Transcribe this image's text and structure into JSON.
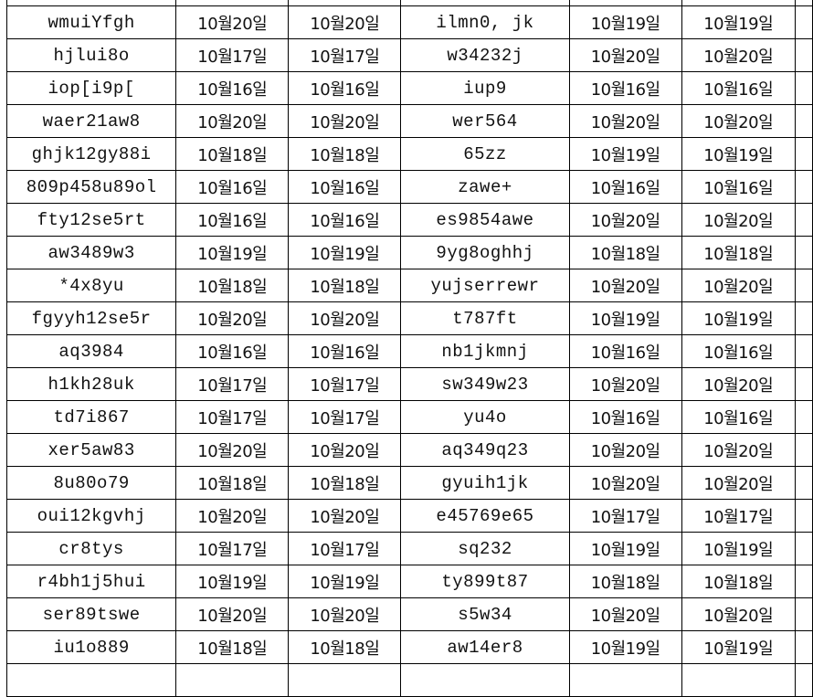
{
  "rows": [
    [
      "wmuiYfgh",
      "10월20일",
      "10월20일",
      "ilmn0, jk",
      "10월19일",
      "10월19일"
    ],
    [
      "hjlui8o",
      "10월17일",
      "10월17일",
      "w34232j",
      "10월20일",
      "10월20일"
    ],
    [
      "iop[i9p[",
      "10월16일",
      "10월16일",
      "iup9",
      "10월16일",
      "10월16일"
    ],
    [
      "waer21aw8",
      "10월20일",
      "10월20일",
      "wer564",
      "10월20일",
      "10월20일"
    ],
    [
      "ghjk12gy88i",
      "10월18일",
      "10월18일",
      "65zz",
      "10월19일",
      "10월19일"
    ],
    [
      "809p458u89ol",
      "10월16일",
      "10월16일",
      "zawe+",
      "10월16일",
      "10월16일"
    ],
    [
      "fty12se5rt",
      "10월16일",
      "10월16일",
      "es9854awe",
      "10월20일",
      "10월20일"
    ],
    [
      "aw3489w3",
      "10월19일",
      "10월19일",
      "9yg8oghhj",
      "10월18일",
      "10월18일"
    ],
    [
      "*4x8yu",
      "10월18일",
      "10월18일",
      "yujserrewr",
      "10월20일",
      "10월20일"
    ],
    [
      "fgyyh12se5r",
      "10월20일",
      "10월20일",
      "t787ft",
      "10월19일",
      "10월19일"
    ],
    [
      "aq3984",
      "10월16일",
      "10월16일",
      "nb1jkmnj",
      "10월16일",
      "10월16일"
    ],
    [
      "h1kh28uk",
      "10월17일",
      "10월17일",
      "sw349w23",
      "10월20일",
      "10월20일"
    ],
    [
      "td7i867",
      "10월17일",
      "10월17일",
      "yu4o",
      "10월16일",
      "10월16일"
    ],
    [
      "xer5aw83",
      "10월20일",
      "10월20일",
      "aq349q23",
      "10월20일",
      "10월20일"
    ],
    [
      "8u80o79",
      "10월18일",
      "10월18일",
      "gyuih1jk",
      "10월20일",
      "10월20일"
    ],
    [
      "oui12kgvhj",
      "10월20일",
      "10월20일",
      "e45769e65",
      "10월17일",
      "10월17일"
    ],
    [
      "cr8tys",
      "10월17일",
      "10월17일",
      "sq232",
      "10월19일",
      "10월19일"
    ],
    [
      "r4bh1j5hui",
      "10월19일",
      "10월19일",
      "ty899t87",
      "10월18일",
      "10월18일"
    ],
    [
      "ser89tswe",
      "10월20일",
      "10월20일",
      "s5w34",
      "10월20일",
      "10월20일"
    ],
    [
      "iu1o889",
      "10월18일",
      "10월18일",
      "aw14er8",
      "10월19일",
      "10월19일"
    ]
  ]
}
